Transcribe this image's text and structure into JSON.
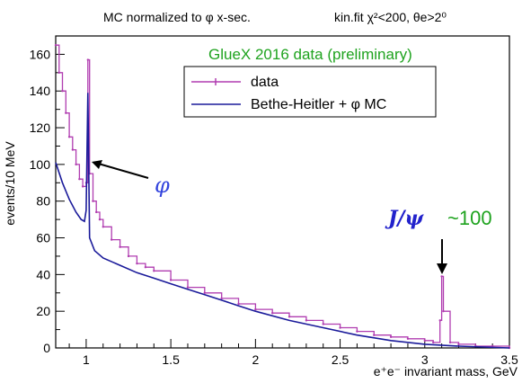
{
  "header": {
    "left": "MC normalized to φ x-sec.",
    "right": "kin.fit χ²<200, θe>2⁰"
  },
  "annotations": {
    "experiment": "GlueX 2016 data (preliminary)",
    "phi_label": "φ",
    "jpsi_label": "J/ψ",
    "jpsi_count": "~100"
  },
  "colors": {
    "data": "#b03cb0",
    "mc": "#1a1a9a",
    "experiment_text": "#1fa31f",
    "phi_text": "#3344dd",
    "jpsi_text": "#2222cc",
    "jpsi_count_text": "#1fa31f"
  },
  "chart_data": {
    "type": "line",
    "title": "",
    "xlabel": "e⁺e⁻ invariant mass, GeV",
    "ylabel": "events/10 MeV",
    "xlim": [
      0.82,
      3.5
    ],
    "ylim": [
      0,
      170
    ],
    "x_ticks": [
      1,
      1.5,
      2,
      2.5,
      3,
      3.5
    ],
    "x_tick_labels": [
      "1",
      "1.5",
      "2",
      "2.5",
      "3",
      "3.5"
    ],
    "y_ticks": [
      0,
      20,
      40,
      60,
      80,
      100,
      120,
      140,
      160
    ],
    "y_tick_labels": [
      "0",
      "20",
      "40",
      "60",
      "80",
      "100",
      "120",
      "140",
      "160"
    ],
    "legend": {
      "placement": "top-right"
    },
    "series": [
      {
        "name": "data",
        "style": "histogram",
        "points": [
          [
            0.82,
            165
          ],
          [
            0.84,
            150
          ],
          [
            0.86,
            140
          ],
          [
            0.88,
            128
          ],
          [
            0.9,
            115
          ],
          [
            0.92,
            108
          ],
          [
            0.94,
            100
          ],
          [
            0.96,
            92
          ],
          [
            0.98,
            88
          ],
          [
            1.0,
            90
          ],
          [
            1.01,
            157
          ],
          [
            1.02,
            95
          ],
          [
            1.04,
            80
          ],
          [
            1.06,
            74
          ],
          [
            1.08,
            70
          ],
          [
            1.1,
            66
          ],
          [
            1.15,
            59
          ],
          [
            1.2,
            55
          ],
          [
            1.25,
            50
          ],
          [
            1.3,
            46
          ],
          [
            1.35,
            44
          ],
          [
            1.4,
            42
          ],
          [
            1.5,
            37
          ],
          [
            1.6,
            33
          ],
          [
            1.7,
            30
          ],
          [
            1.8,
            27
          ],
          [
            1.9,
            24
          ],
          [
            2.0,
            21
          ],
          [
            2.1,
            19
          ],
          [
            2.2,
            17
          ],
          [
            2.3,
            15
          ],
          [
            2.4,
            13
          ],
          [
            2.5,
            11
          ],
          [
            2.6,
            9
          ],
          [
            2.7,
            7
          ],
          [
            2.8,
            6
          ],
          [
            2.9,
            5
          ],
          [
            3.0,
            4
          ],
          [
            3.05,
            3
          ],
          [
            3.09,
            15
          ],
          [
            3.1,
            39
          ],
          [
            3.11,
            20
          ],
          [
            3.15,
            3
          ],
          [
            3.2,
            2
          ],
          [
            3.3,
            1
          ],
          [
            3.4,
            1
          ],
          [
            3.5,
            0
          ]
        ]
      },
      {
        "name": "Bethe-Heitler + φ MC",
        "style": "smooth",
        "points": [
          [
            0.82,
            101
          ],
          [
            0.86,
            90
          ],
          [
            0.9,
            81
          ],
          [
            0.94,
            74
          ],
          [
            0.97,
            70
          ],
          [
            0.99,
            69
          ],
          [
            1.0,
            75
          ],
          [
            1.01,
            139
          ],
          [
            1.02,
            60
          ],
          [
            1.05,
            53
          ],
          [
            1.1,
            49
          ],
          [
            1.2,
            45
          ],
          [
            1.3,
            41
          ],
          [
            1.4,
            38
          ],
          [
            1.5,
            35
          ],
          [
            1.6,
            32
          ],
          [
            1.7,
            29
          ],
          [
            1.8,
            26
          ],
          [
            1.9,
            23
          ],
          [
            2.0,
            20
          ],
          [
            2.2,
            15
          ],
          [
            2.4,
            11
          ],
          [
            2.6,
            7
          ],
          [
            2.8,
            4
          ],
          [
            3.0,
            2
          ],
          [
            3.2,
            1
          ],
          [
            3.5,
            0
          ]
        ]
      }
    ]
  }
}
